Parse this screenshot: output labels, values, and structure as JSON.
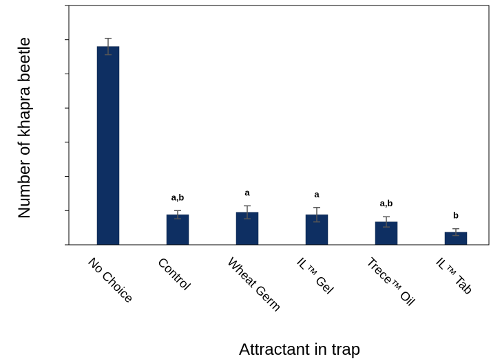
{
  "chart_data": {
    "type": "bar",
    "title": "",
    "xlabel": "Attractant in trap",
    "ylabel": "Number of khapra beetle",
    "categories": [
      "No Choice",
      "Control",
      "Wheat Germ",
      "IL™ Gel",
      "Trece™ Oil",
      "IL™ Tab"
    ],
    "values": [
      5.8,
      0.88,
      0.95,
      0.88,
      0.67,
      0.37
    ],
    "errors": [
      0.24,
      0.12,
      0.19,
      0.21,
      0.15,
      0.1
    ],
    "significance": [
      "",
      "a,b",
      "a",
      "a",
      "a,b",
      "b"
    ],
    "ylim": [
      0,
      7
    ],
    "yticks": [
      0,
      1,
      2,
      3,
      4,
      5,
      6,
      7
    ],
    "ytick_labels_shown": false,
    "grid": false,
    "legend": "none",
    "bar_color": "#0e2f62",
    "error_color": "#555555"
  }
}
